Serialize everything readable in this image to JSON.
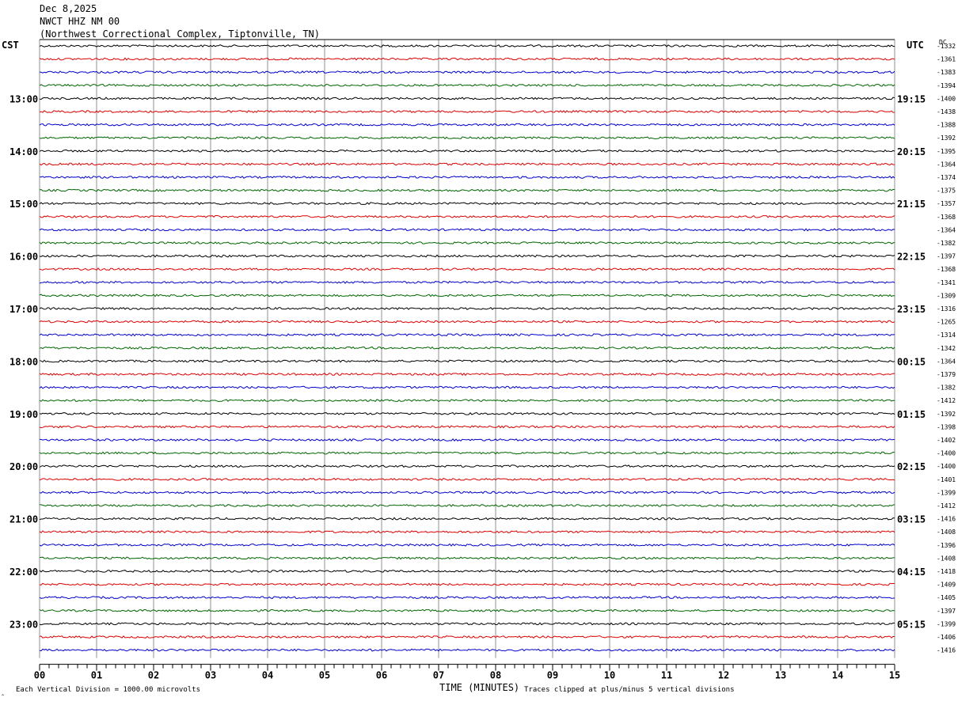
{
  "header": {
    "date": "Dec 8,2025",
    "station": "NWCT HHZ NM 00",
    "location": "(Northwest Correctional Complex, Tiptonville, TN)"
  },
  "left_axis_label": "CST",
  "right_axis_label": "UTC",
  "dc_label": "DC",
  "footer": {
    "left_note": "Each Vertical Division = 1000.00 microvolts",
    "corner_mark": "‸",
    "right_note": "Traces clipped at plus/minus 5 vertical divisions"
  },
  "chart_data": {
    "type": "line",
    "title": "",
    "xlabel": "TIME (MINUTES)",
    "xlim": [
      0,
      15
    ],
    "x_ticks": [
      "00",
      "01",
      "02",
      "03",
      "04",
      "05",
      "06",
      "07",
      "08",
      "09",
      "10",
      "11",
      "12",
      "13",
      "14",
      "15"
    ],
    "trace_minutes": 15,
    "trace_colors": [
      "#000000",
      "#dd0000",
      "#0000cc",
      "#006600"
    ],
    "left_time_labels": [
      "13:00",
      "14:00",
      "15:00",
      "16:00",
      "17:00",
      "18:00",
      "19:00",
      "20:00",
      "21:00",
      "22:00",
      "23:00"
    ],
    "right_time_labels": [
      "19:15",
      "20:15",
      "21:15",
      "22:15",
      "23:15",
      "00:15",
      "01:15",
      "02:15",
      "03:15",
      "04:15",
      "05:15"
    ],
    "first_hour_label_row": 4,
    "rows_per_hour": 4,
    "dc_offsets": [
      -1332,
      -1361,
      -1383,
      -1394,
      -1400,
      -1438,
      -1388,
      -1392,
      -1395,
      -1364,
      -1374,
      -1375,
      -1357,
      -1368,
      -1364,
      -1382,
      -1397,
      -1368,
      -1341,
      -1309,
      -1316,
      -1265,
      -1314,
      -1342,
      -1364,
      -1379,
      -1382,
      -1412,
      -1392,
      -1398,
      -1402,
      -1400,
      -1400,
      -1401,
      -1399,
      -1412,
      -1416,
      -1408,
      -1396,
      -1408,
      -1418,
      -1409,
      -1405,
      -1397,
      -1399,
      -1406,
      -1416
    ]
  }
}
